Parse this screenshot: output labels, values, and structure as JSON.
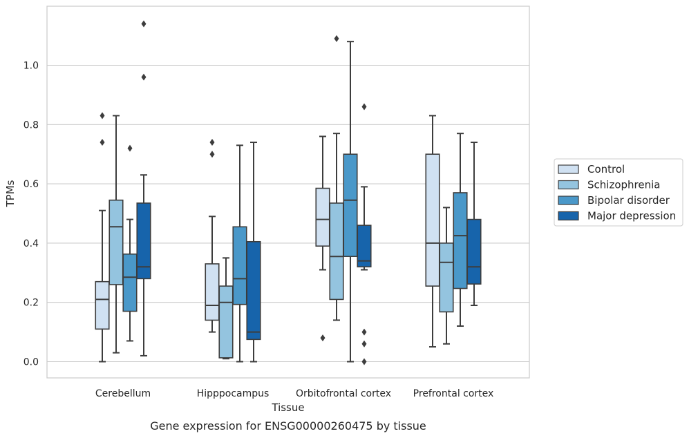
{
  "caption": "Gene expression for ENSG00000260475 by tissue",
  "chart_data": {
    "type": "box",
    "xlabel": "Tissue",
    "ylabel": "TPMs",
    "ylim": [
      -0.055,
      1.2
    ],
    "yticks": [
      0.0,
      0.2,
      0.4,
      0.6,
      0.8,
      1.0
    ],
    "ytick_labels": [
      "0.0",
      "0.2",
      "0.4",
      "0.6",
      "0.8",
      "1.0"
    ],
    "grid": "horizontal",
    "legend_position": "right",
    "categories": [
      "Cerebellum",
      "Hipppocampus",
      "Orbitofrontal cortex",
      "Prefrontal cortex"
    ],
    "series": [
      {
        "name": "Control",
        "color": "#d0e1f2",
        "boxes": [
          {
            "whislo": 0.0,
            "q1": 0.11,
            "med": 0.21,
            "q3": 0.27,
            "whishi": 0.51,
            "fliers": [
              0.74,
              0.83
            ]
          },
          {
            "whislo": 0.1,
            "q1": 0.14,
            "med": 0.19,
            "q3": 0.33,
            "whishi": 0.49,
            "fliers": [
              0.7,
              0.74
            ]
          },
          {
            "whislo": 0.31,
            "q1": 0.39,
            "med": 0.48,
            "q3": 0.585,
            "whishi": 0.76,
            "fliers": [
              0.08
            ]
          },
          {
            "whislo": 0.05,
            "q1": 0.255,
            "med": 0.4,
            "q3": 0.7,
            "whishi": 0.83,
            "fliers": []
          }
        ]
      },
      {
        "name": "Schizophrenia",
        "color": "#94c4df",
        "boxes": [
          {
            "whislo": 0.03,
            "q1": 0.26,
            "med": 0.455,
            "q3": 0.545,
            "whishi": 0.83,
            "fliers": []
          },
          {
            "whislo": 0.01,
            "q1": 0.013,
            "med": 0.2,
            "q3": 0.255,
            "whishi": 0.35,
            "fliers": []
          },
          {
            "whislo": 0.14,
            "q1": 0.21,
            "med": 0.355,
            "q3": 0.535,
            "whishi": 0.77,
            "fliers": [
              1.09
            ]
          },
          {
            "whislo": 0.06,
            "q1": 0.168,
            "med": 0.335,
            "q3": 0.4,
            "whishi": 0.52,
            "fliers": []
          }
        ]
      },
      {
        "name": "Bipolar disorder",
        "color": "#4a98c9",
        "boxes": [
          {
            "whislo": 0.07,
            "q1": 0.17,
            "med": 0.285,
            "q3": 0.363,
            "whishi": 0.48,
            "fliers": [
              0.72
            ]
          },
          {
            "whislo": 0.0,
            "q1": 0.193,
            "med": 0.28,
            "q3": 0.455,
            "whishi": 0.73,
            "fliers": []
          },
          {
            "whislo": 0.0,
            "q1": 0.355,
            "med": 0.545,
            "q3": 0.7,
            "whishi": 1.08,
            "fliers": []
          },
          {
            "whislo": 0.12,
            "q1": 0.247,
            "med": 0.425,
            "q3": 0.57,
            "whishi": 0.77,
            "fliers": []
          }
        ]
      },
      {
        "name": "Major depression",
        "color": "#1764ab",
        "boxes": [
          {
            "whislo": 0.02,
            "q1": 0.28,
            "med": 0.32,
            "q3": 0.535,
            "whishi": 0.63,
            "fliers": [
              0.96,
              1.14
            ]
          },
          {
            "whislo": 0.0,
            "q1": 0.075,
            "med": 0.1,
            "q3": 0.405,
            "whishi": 0.74,
            "fliers": []
          },
          {
            "whislo": 0.31,
            "q1": 0.32,
            "med": 0.34,
            "q3": 0.46,
            "whishi": 0.59,
            "fliers": [
              0.0,
              0.06,
              0.1,
              0.86
            ]
          },
          {
            "whislo": 0.19,
            "q1": 0.262,
            "med": 0.32,
            "q3": 0.48,
            "whishi": 0.74,
            "fliers": []
          }
        ]
      }
    ]
  }
}
